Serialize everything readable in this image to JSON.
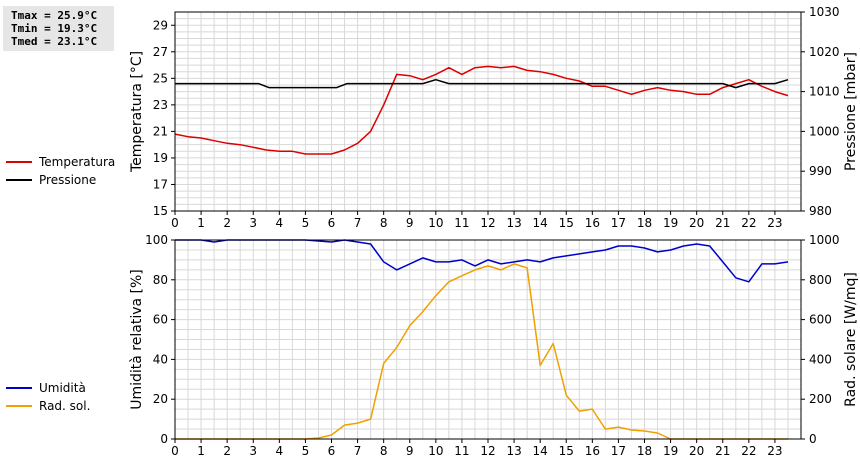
{
  "stats": {
    "tmax": "Tmax = 25.9°C",
    "tmin": "Tmin = 19.3°C",
    "tmed": "Tmed = 23.1°C"
  },
  "legend_top": [
    {
      "name": "Temperatura",
      "color": "#dd0000"
    },
    {
      "name": "Pressione",
      "color": "#000000"
    }
  ],
  "legend_bottom": [
    {
      "name": "Umidità",
      "color": "#0000cc"
    },
    {
      "name": "Rad. sol.",
      "color": "#f0a000"
    }
  ],
  "chart_data": [
    {
      "type": "line",
      "ylabel": "Temperatura [°C]",
      "y2label": "Pressione [mbar]",
      "xlim": [
        0,
        24
      ],
      "ylim": [
        15,
        30
      ],
      "y2lim": [
        980,
        1030
      ],
      "x_ticks": [
        "0",
        "1",
        "2",
        "3",
        "4",
        "5",
        "6",
        "7",
        "8",
        "9",
        "10",
        "11",
        "12",
        "13",
        "14",
        "15",
        "16",
        "17",
        "18",
        "19",
        "20",
        "21",
        "22",
        "23"
      ],
      "y_ticks": [
        "15",
        "17",
        "19",
        "21",
        "23",
        "25",
        "27",
        "29"
      ],
      "y2_ticks": [
        "980",
        "990",
        "1000",
        "1010",
        "1020",
        "1030"
      ],
      "grid": true,
      "series": [
        {
          "name": "Temperatura",
          "color": "#dd0000",
          "axis": "left",
          "x": [
            0,
            0.5,
            1,
            1.5,
            2,
            2.5,
            3,
            3.5,
            4,
            4.5,
            5,
            5.5,
            6,
            6.5,
            7,
            7.5,
            8,
            8.5,
            9,
            9.5,
            10,
            10.5,
            11,
            11.5,
            12,
            12.5,
            13,
            13.5,
            14,
            14.5,
            15,
            15.5,
            16,
            16.5,
            17,
            17.5,
            18,
            18.5,
            19,
            19.5,
            20,
            20.5,
            21,
            21.5,
            22,
            22.5,
            23,
            23.5
          ],
          "values": [
            20.8,
            20.6,
            20.5,
            20.3,
            20.1,
            20.0,
            19.8,
            19.6,
            19.5,
            19.5,
            19.3,
            19.3,
            19.3,
            19.6,
            20.1,
            21.0,
            23.0,
            25.3,
            25.2,
            24.9,
            25.3,
            25.8,
            25.3,
            25.8,
            25.9,
            25.8,
            25.9,
            25.6,
            25.5,
            25.3,
            25.0,
            24.8,
            24.4,
            24.4,
            24.1,
            23.8,
            24.1,
            24.3,
            24.1,
            24.0,
            23.8,
            23.8,
            24.3,
            24.6,
            24.9,
            24.4,
            24.0,
            23.7
          ]
        },
        {
          "name": "Pressione",
          "color": "#000000",
          "axis": "right",
          "x": [
            0,
            3.2,
            3.6,
            4.5,
            5.5,
            6.2,
            6.6,
            7.5,
            9.5,
            10,
            10.5,
            11,
            16,
            21,
            21.5,
            22,
            23,
            23.5
          ],
          "values": [
            1012,
            1012,
            1011,
            1011,
            1011,
            1011,
            1012,
            1012,
            1012,
            1013,
            1012,
            1012,
            1012,
            1012,
            1011,
            1012,
            1012,
            1013
          ]
        }
      ]
    },
    {
      "type": "line",
      "ylabel": "Umidità relativa [%]",
      "y2label": "Rad. solare [W/mq]",
      "xlim": [
        0,
        24
      ],
      "ylim": [
        0,
        100
      ],
      "y2lim": [
        0,
        1000
      ],
      "x_ticks": [
        "0",
        "1",
        "2",
        "3",
        "4",
        "5",
        "6",
        "7",
        "8",
        "9",
        "10",
        "11",
        "12",
        "13",
        "14",
        "15",
        "16",
        "17",
        "18",
        "19",
        "20",
        "21",
        "22",
        "23"
      ],
      "y_ticks": [
        "0",
        "20",
        "40",
        "60",
        "80",
        "100"
      ],
      "y2_ticks": [
        "0",
        "200",
        "400",
        "600",
        "800",
        "1000"
      ],
      "grid": true,
      "series": [
        {
          "name": "Umidità",
          "color": "#0000cc",
          "axis": "left",
          "x": [
            0,
            1,
            1.5,
            2,
            3,
            4,
            5,
            6,
            6.5,
            7,
            7.5,
            8,
            8.5,
            9,
            9.5,
            10,
            10.5,
            11,
            11.5,
            12,
            12.5,
            13,
            13.5,
            14,
            14.5,
            15,
            16,
            16.5,
            17,
            17.5,
            18,
            18.5,
            19,
            19.5,
            20,
            20.5,
            21,
            21.5,
            22,
            22.5,
            23,
            23.5
          ],
          "values": [
            100,
            100,
            99,
            100,
            100,
            100,
            100,
            99,
            100,
            99,
            98,
            89,
            85,
            88,
            91,
            89,
            89,
            90,
            87,
            90,
            88,
            89,
            90,
            89,
            91,
            92,
            94,
            95,
            97,
            97,
            96,
            94,
            95,
            97,
            98,
            97,
            89,
            81,
            79,
            88,
            88,
            89
          ]
        },
        {
          "name": "Rad. sol.",
          "color": "#f0a000",
          "axis": "right",
          "x": [
            0,
            5,
            5.5,
            6,
            6.5,
            7,
            7.5,
            8,
            8.5,
            9,
            9.5,
            10,
            10.5,
            11,
            11.5,
            12,
            12.5,
            13,
            13.5,
            14,
            14.5,
            15,
            15.5,
            16,
            16.5,
            17,
            17.5,
            18,
            18.5,
            19,
            20,
            21,
            22,
            23,
            23.5
          ],
          "values": [
            0,
            0,
            5,
            20,
            70,
            80,
            100,
            380,
            460,
            570,
            640,
            720,
            790,
            820,
            850,
            870,
            850,
            880,
            860,
            370,
            480,
            220,
            140,
            150,
            50,
            60,
            45,
            40,
            30,
            0,
            0,
            0,
            0,
            0,
            0
          ]
        }
      ]
    }
  ]
}
